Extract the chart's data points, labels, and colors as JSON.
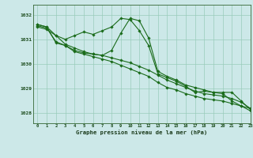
{
  "background_color": "#cce8e8",
  "grid_color": "#99ccbb",
  "line_color": "#1a6b1a",
  "marker_color": "#1a6b1a",
  "xlabel": "Graphe pression niveau de la mer (hPa)",
  "ylim": [
    1027.6,
    1032.4
  ],
  "xlim": [
    -0.5,
    23
  ],
  "yticks": [
    1028,
    1029,
    1030,
    1031,
    1032
  ],
  "xticks": [
    0,
    1,
    2,
    3,
    4,
    5,
    6,
    7,
    8,
    9,
    10,
    11,
    12,
    13,
    14,
    15,
    16,
    17,
    18,
    19,
    20,
    21,
    22,
    23
  ],
  "series": [
    [
      1031.5,
      1031.4,
      1031.15,
      1030.8,
      1030.65,
      1030.5,
      1030.4,
      1030.35,
      1030.25,
      1030.15,
      1030.05,
      1029.9,
      1029.75,
      1029.55,
      1029.35,
      1029.2,
      1029.05,
      1028.9,
      1028.8,
      1028.75,
      1028.7,
      1028.6,
      1028.45,
      1028.2
    ],
    [
      1031.55,
      1031.45,
      1030.9,
      1030.75,
      1030.5,
      1030.4,
      1030.3,
      1030.2,
      1030.1,
      1029.95,
      1029.8,
      1029.65,
      1029.5,
      1029.25,
      1029.05,
      1028.95,
      1028.8,
      1028.7,
      1028.6,
      1028.55,
      1028.5,
      1028.4,
      1028.3,
      1028.1
    ],
    [
      1031.6,
      1031.5,
      1030.85,
      1030.75,
      1030.55,
      1030.45,
      1030.4,
      1030.35,
      1030.55,
      1031.25,
      1031.85,
      1031.75,
      1031.05,
      1029.7,
      1029.5,
      1029.35,
      1029.15,
      1029.05,
      1028.95,
      1028.85,
      1028.85,
      1028.85,
      1028.5,
      1028.15
    ],
    [
      1031.6,
      1031.5,
      1031.15,
      1031.0,
      1031.15,
      1031.3,
      1031.2,
      1031.35,
      1031.5,
      1031.85,
      1031.8,
      1031.35,
      1030.75,
      1029.6,
      1029.45,
      1029.3,
      1029.1,
      1028.85,
      1028.9,
      1028.85,
      1028.8,
      1028.5,
      1028.3,
      1028.2
    ]
  ]
}
